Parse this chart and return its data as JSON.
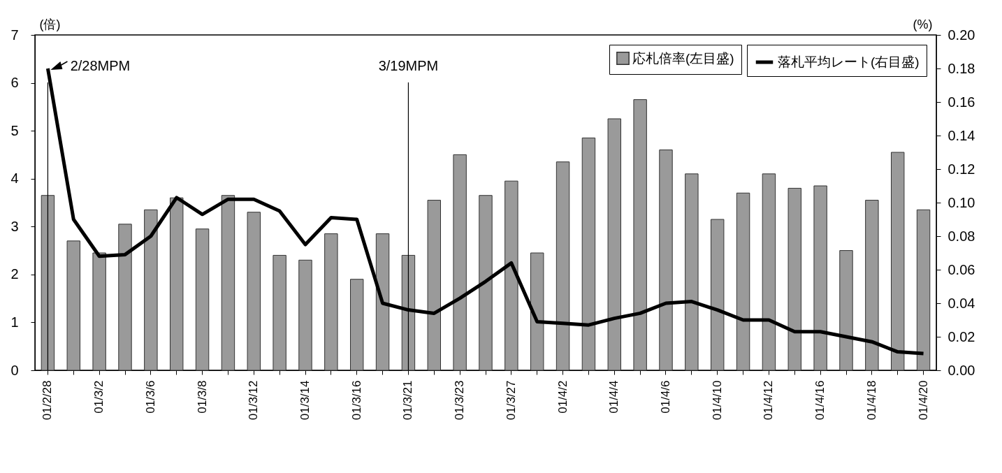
{
  "chart_data": {
    "type": "bar",
    "categories": [
      "01/2/28",
      null,
      "01/3/2",
      null,
      "01/3/6",
      null,
      "01/3/8",
      null,
      "01/3/12",
      null,
      "01/3/14",
      null,
      "01/3/16",
      null,
      "01/3/21",
      null,
      "01/3/23",
      null,
      "01/3/27",
      null,
      "01/4/2",
      null,
      "01/4/4",
      null,
      "01/4/6",
      null,
      "01/4/10",
      null,
      "01/4/12",
      null,
      "01/4/16",
      null,
      "01/4/18",
      null,
      "01/4/20"
    ],
    "series": [
      {
        "name": "応札倍率(左目盛)",
        "color": "#9a9a9a",
        "values": [
          3.65,
          2.7,
          2.45,
          3.05,
          3.35,
          3.6,
          2.95,
          3.65,
          3.3,
          2.4,
          2.3,
          2.85,
          1.9,
          2.85,
          2.4,
          3.55,
          4.5,
          3.65,
          3.95,
          2.45,
          4.35,
          4.85,
          5.25,
          5.65,
          4.6,
          4.1,
          3.15,
          3.7,
          4.1,
          3.8,
          3.85,
          2.5,
          3.55,
          4.55,
          3.35
        ]
      },
      {
        "name": "落札平均レート(右目盛)",
        "type": "line",
        "axis": "y2",
        "color": "#000000",
        "line_style": "solid",
        "values": [
          0.18,
          0.09,
          0.068,
          0.069,
          0.08,
          0.103,
          0.093,
          0.102,
          0.102,
          0.095,
          0.075,
          0.091,
          0.09,
          0.04,
          0.036,
          0.034,
          0.043,
          0.053,
          0.064,
          0.029,
          0.028,
          0.027,
          0.031,
          0.034,
          0.04,
          0.041,
          0.036,
          0.03,
          0.03,
          0.023,
          0.023,
          0.02,
          0.017,
          0.011,
          0.01
        ]
      }
    ],
    "ylabel": "(倍)",
    "y2label": "(%)",
    "ylim": [
      0,
      7
    ],
    "yticks": [
      0,
      1,
      2,
      3,
      4,
      5,
      6,
      7
    ],
    "y2lim": [
      0,
      0.2
    ],
    "y2ticks": [
      {
        "value": 0,
        "label": "0.00"
      },
      {
        "value": 0.02,
        "label": "0.02"
      },
      {
        "value": 0.04,
        "label": "0.04"
      },
      {
        "value": 0.06,
        "label": "0.06"
      },
      {
        "value": 0.08,
        "label": "0.08"
      },
      {
        "value": 0.1,
        "label": "0.10"
      },
      {
        "value": 0.12,
        "label": "0.12"
      },
      {
        "value": 0.14,
        "label": "0.14"
      },
      {
        "value": 0.16,
        "label": "0.16"
      },
      {
        "value": 0.18,
        "label": "0.18"
      },
      {
        "value": 0.2,
        "label": "0.20"
      }
    ],
    "ref_lines": [
      {
        "axis": "x",
        "value": "01/2/28",
        "label": "2/28MPM"
      },
      {
        "axis": "x",
        "value": "01/3/21",
        "label": "3/19MPM"
      }
    ],
    "legend": "top right"
  }
}
